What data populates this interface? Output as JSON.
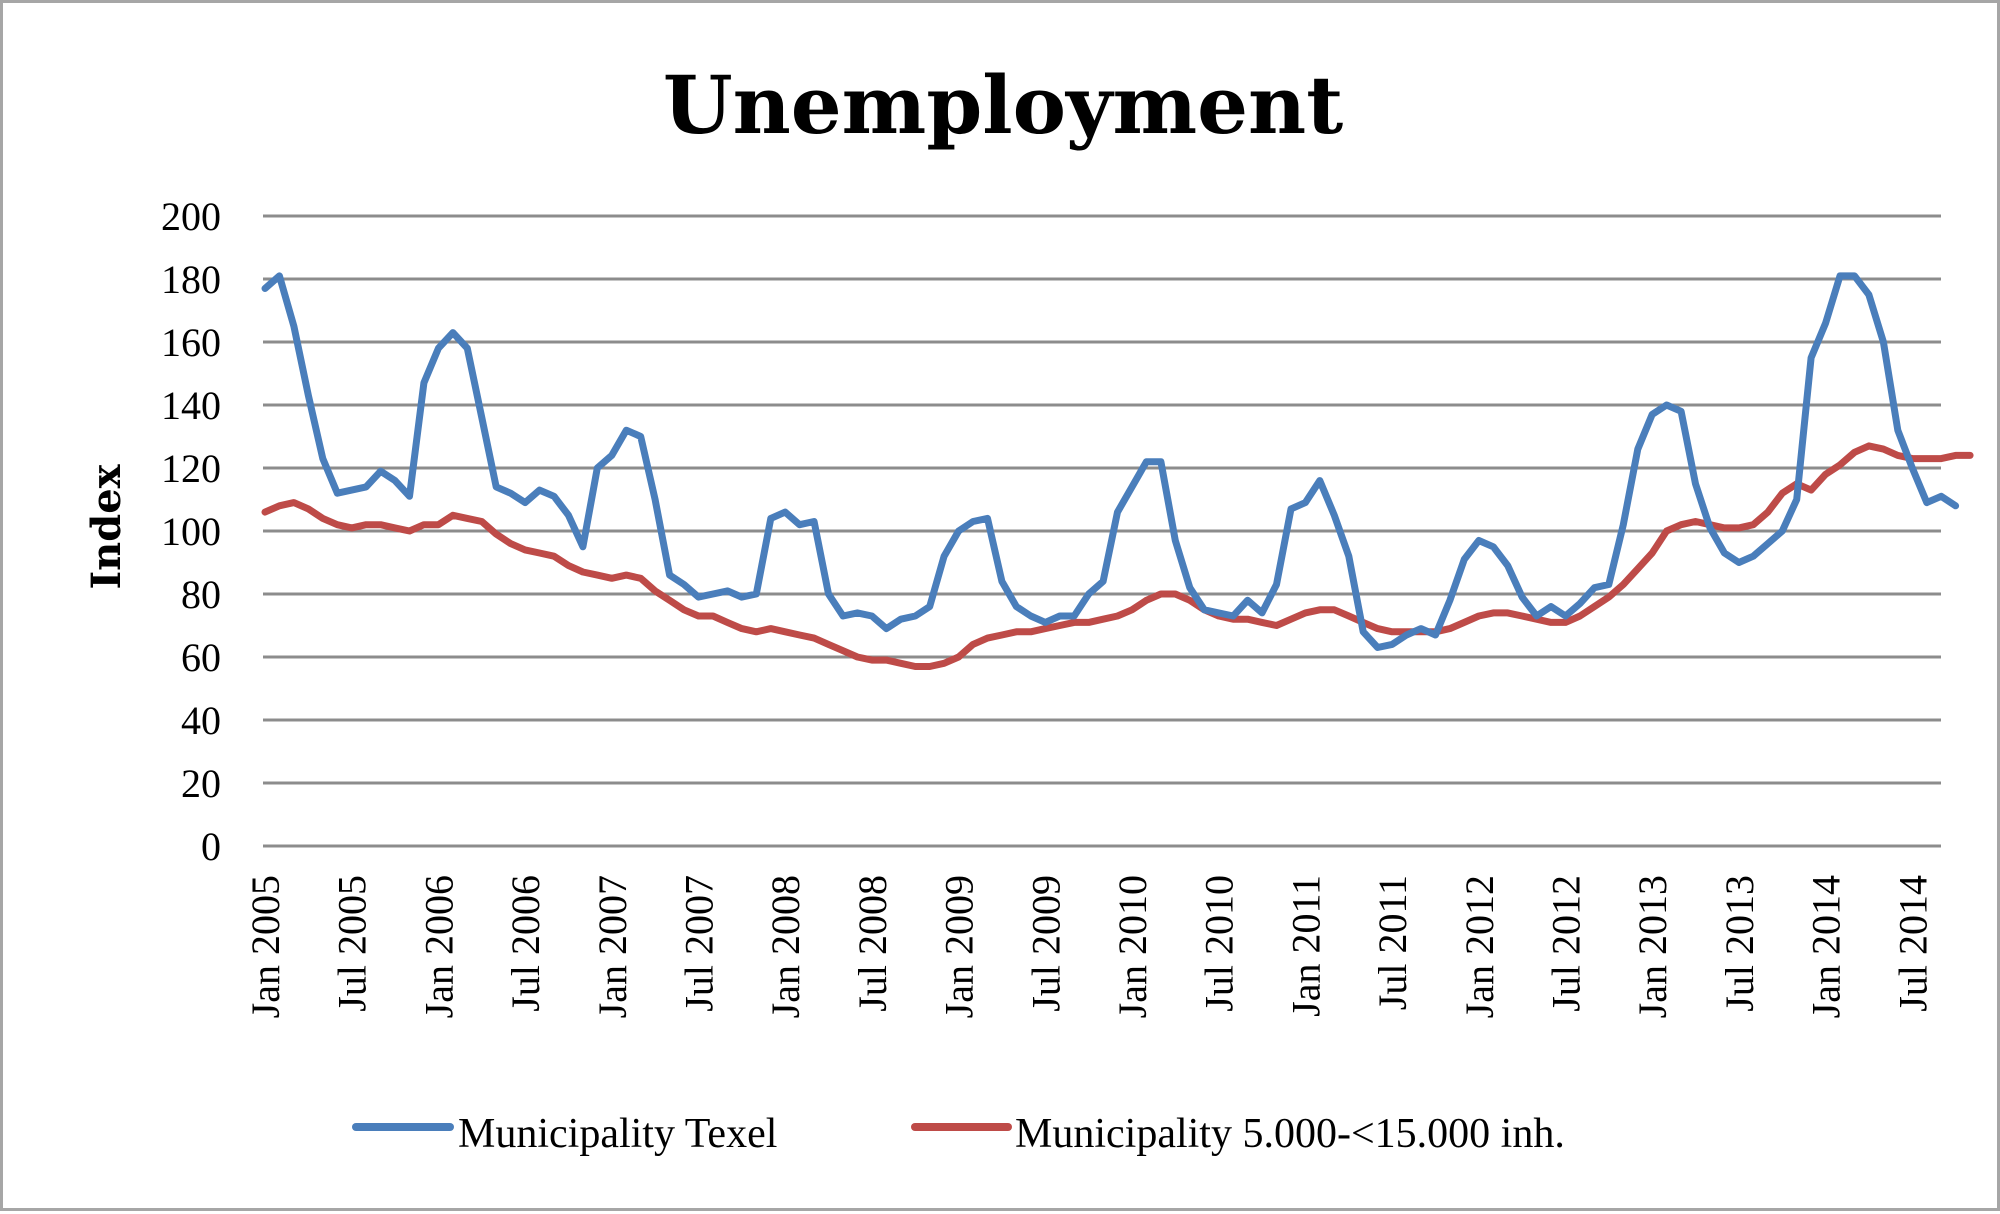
{
  "chart_data": {
    "type": "line",
    "title": "Unemployment",
    "xlabel": "",
    "ylabel": "Index",
    "ylim": [
      0,
      200
    ],
    "yticks": [
      0,
      20,
      40,
      60,
      80,
      100,
      120,
      140,
      160,
      180,
      200
    ],
    "grid": true,
    "legend_position": "bottom",
    "x_start": "Jan 2005",
    "x_tick_labels": [
      "Jan 2005",
      "Jul 2005",
      "Jan 2006",
      "Jul 2006",
      "Jan 2007",
      "Jul 2007",
      "Jan 2008",
      "Jul 2008",
      "Jan 2009",
      "Jul 2009",
      "Jan 2010",
      "Jul 2010",
      "Jan 2011",
      "Jul 2011",
      "Jan 2012",
      "Jul 2012",
      "Jan 2013",
      "Jul 2013",
      "Jan 2014",
      "Jul 2014"
    ],
    "series": [
      {
        "name": "Municipality Texel",
        "color": "#4a7ebb",
        "values": [
          177,
          181,
          165,
          143,
          123,
          112,
          113,
          114,
          119,
          116,
          111,
          147,
          158,
          163,
          158,
          136,
          114,
          112,
          109,
          113,
          111,
          105,
          95,
          120,
          124,
          132,
          130,
          110,
          86,
          83,
          79,
          80,
          81,
          79,
          80,
          104,
          106,
          102,
          103,
          80,
          73,
          74,
          73,
          69,
          72,
          73,
          76,
          92,
          100,
          103,
          104,
          84,
          76,
          73,
          71,
          73,
          73,
          80,
          84,
          106,
          114,
          122,
          122,
          97,
          82,
          75,
          74,
          73,
          78,
          74,
          83,
          107,
          109,
          116,
          105,
          92,
          68,
          63,
          64,
          67,
          69,
          67,
          78,
          91,
          97,
          95,
          89,
          79,
          73,
          76,
          73,
          77,
          82,
          83,
          102,
          126,
          137,
          140,
          138,
          115,
          101,
          93,
          90,
          92,
          96,
          100,
          110,
          155,
          166,
          181,
          181,
          175,
          160,
          132,
          120,
          109,
          111,
          108
        ]
      },
      {
        "name": "Municipality 5.000-<15.000 inh.",
        "color": "#be4b48",
        "values": [
          106,
          108,
          109,
          107,
          104,
          102,
          101,
          102,
          102,
          101,
          100,
          102,
          102,
          105,
          104,
          103,
          99,
          96,
          94,
          93,
          92,
          89,
          87,
          86,
          85,
          86,
          85,
          81,
          78,
          75,
          73,
          73,
          71,
          69,
          68,
          69,
          68,
          67,
          66,
          64,
          62,
          60,
          59,
          59,
          58,
          57,
          57,
          58,
          60,
          64,
          66,
          67,
          68,
          68,
          69,
          70,
          71,
          71,
          72,
          73,
          75,
          78,
          80,
          80,
          78,
          75,
          73,
          72,
          72,
          71,
          70,
          72,
          74,
          75,
          75,
          73,
          71,
          69,
          68,
          68,
          68,
          68,
          69,
          71,
          73,
          74,
          74,
          73,
          72,
          71,
          71,
          73,
          76,
          79,
          83,
          88,
          93,
          100,
          102,
          103,
          102,
          101,
          101,
          102,
          106,
          112,
          115,
          113,
          118,
          121,
          125,
          127,
          126,
          124,
          123,
          123,
          123,
          124,
          124
        ]
      }
    ]
  }
}
